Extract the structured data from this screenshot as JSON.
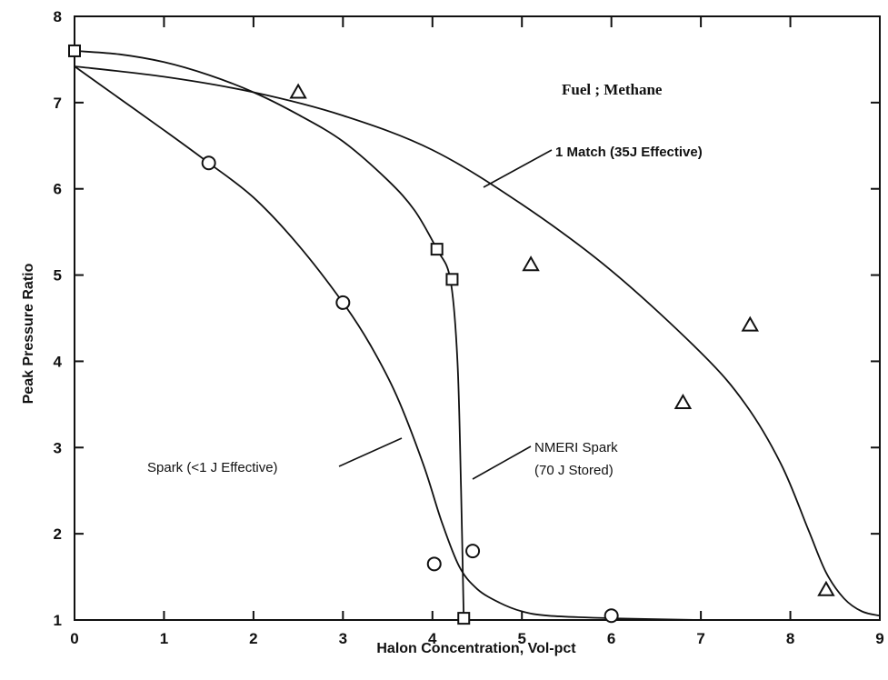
{
  "chart_data": {
    "type": "scatter",
    "title": "",
    "xlabel": "Halon Concentration, Vol-pct",
    "ylabel": "Peak Pressure Ratio",
    "xlim": [
      0,
      9
    ],
    "ylim": [
      1,
      8
    ],
    "x_ticks": [
      "0",
      "1",
      "2",
      "3",
      "4",
      "5",
      "6",
      "7",
      "8",
      "9"
    ],
    "y_ticks": [
      "1",
      "2",
      "3",
      "4",
      "5",
      "6",
      "7",
      "8"
    ],
    "grid": false,
    "series": [
      {
        "name": "Spark (<1 J Effective)",
        "marker": "circle",
        "points": [
          [
            1.5,
            6.3
          ],
          [
            3.0,
            4.68
          ],
          [
            4.02,
            1.65
          ],
          [
            4.45,
            1.8
          ],
          [
            6.0,
            1.05
          ]
        ],
        "curve": [
          [
            0,
            7.42
          ],
          [
            0.5,
            7.05
          ],
          [
            1.0,
            6.68
          ],
          [
            1.5,
            6.3
          ],
          [
            2.0,
            5.9
          ],
          [
            2.5,
            5.35
          ],
          [
            3.0,
            4.68
          ],
          [
            3.3,
            4.2
          ],
          [
            3.6,
            3.6
          ],
          [
            3.9,
            2.8
          ],
          [
            4.1,
            2.15
          ],
          [
            4.3,
            1.62
          ],
          [
            4.5,
            1.36
          ],
          [
            4.75,
            1.2
          ],
          [
            5.0,
            1.1
          ],
          [
            5.3,
            1.05
          ],
          [
            6.0,
            1.02
          ],
          [
            7.0,
            1.0
          ]
        ]
      },
      {
        "name": "NMERI Spark (70 J Stored)",
        "marker": "square",
        "points": [
          [
            0.0,
            7.6
          ],
          [
            4.05,
            5.3
          ],
          [
            4.22,
            4.95
          ],
          [
            4.35,
            1.02
          ]
        ],
        "curve": [
          [
            0,
            7.6
          ],
          [
            0.5,
            7.56
          ],
          [
            1.0,
            7.47
          ],
          [
            1.5,
            7.32
          ],
          [
            2.0,
            7.12
          ],
          [
            2.5,
            6.86
          ],
          [
            3.0,
            6.55
          ],
          [
            3.5,
            6.1
          ],
          [
            3.8,
            5.75
          ],
          [
            4.05,
            5.3
          ],
          [
            4.2,
            4.95
          ],
          [
            4.28,
            4.0
          ],
          [
            4.32,
            2.5
          ],
          [
            4.35,
            1.02
          ]
        ]
      },
      {
        "name": "1 Match (35J Effective)",
        "marker": "triangle",
        "points": [
          [
            2.5,
            7.12
          ],
          [
            5.1,
            5.12
          ],
          [
            6.8,
            3.52
          ],
          [
            7.55,
            4.42
          ],
          [
            8.4,
            1.35
          ]
        ],
        "curve": [
          [
            0,
            7.42
          ],
          [
            1.0,
            7.3
          ],
          [
            2.0,
            7.12
          ],
          [
            3.0,
            6.85
          ],
          [
            4.0,
            6.45
          ],
          [
            5.0,
            5.82
          ],
          [
            6.0,
            5.05
          ],
          [
            7.0,
            4.1
          ],
          [
            7.5,
            3.5
          ],
          [
            7.9,
            2.8
          ],
          [
            8.2,
            2.05
          ],
          [
            8.4,
            1.55
          ],
          [
            8.6,
            1.25
          ],
          [
            8.8,
            1.1
          ],
          [
            9.0,
            1.05
          ]
        ]
      }
    ],
    "annotations": {
      "fuel": "Fuel ; Methane",
      "match": "1 Match (35J Effective)",
      "spark": "Spark (<1 J Effective)",
      "nmeri_line1": "NMERI Spark",
      "nmeri_line2": "(70 J Stored)"
    }
  }
}
